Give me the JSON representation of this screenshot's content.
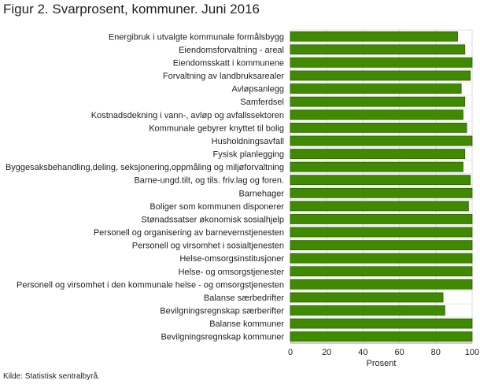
{
  "chart_data": {
    "type": "bar",
    "orientation": "horizontal",
    "title": "Figur 2. Svarprosent, kommuner. Juni 2016",
    "xlabel": "Prosent",
    "ylabel": "",
    "xlim": [
      0,
      100
    ],
    "xticks": [
      "0",
      "20",
      "40",
      "60",
      "80",
      "100"
    ],
    "grid": true,
    "legend": "none",
    "bar_color": "#3f8a00",
    "bar_stroke": "#2c5e00",
    "categories": [
      "Energibruk i utvalgte kommunale formålsbygg",
      "Eiendomsforvaltning - areal",
      "Eiendomsskatt i kommunene",
      "Forvaltning av landbruksarealer",
      "Avløpsanlegg",
      "Samferdsel",
      "Kostnadsdekning i vann-, avløp og avfallssektoren",
      "Kommunale gebyrer knyttet til bolig",
      "Husholdningsavfall",
      "Fysisk planlegging",
      "Byggesaksbehandling,deling, seksjonering,oppmåling og miljøforvaltning",
      "Barne-ungd.tilt, og tils. friv.lag og foren.",
      "Barnehager",
      "Boliger som kommunen disponerer",
      "Stønadssatser økonomisk sosialhjelp",
      "Personell og organisering av barnevernstjenesten",
      "Personell og virsomhet i sosialtjenesten",
      "Helse-omsorgsinstitusjoner",
      "Helse- og omsorgstjenester",
      "Personell og virsomhet i den kommunale helse - og omsorgstjenesten",
      "Balanse særbedrifter",
      "Bevilgningsregnskap særberifter",
      "Balanse kommuner",
      "Bevilgningsregnskap kommuner"
    ],
    "values": [
      92,
      96,
      100,
      99,
      94,
      96,
      95,
      97,
      100,
      96,
      95,
      99,
      100,
      98,
      100,
      100,
      100,
      100,
      100,
      100,
      84,
      85,
      100,
      100
    ]
  },
  "source": "Kilde: Statistisk sentralbyrå."
}
